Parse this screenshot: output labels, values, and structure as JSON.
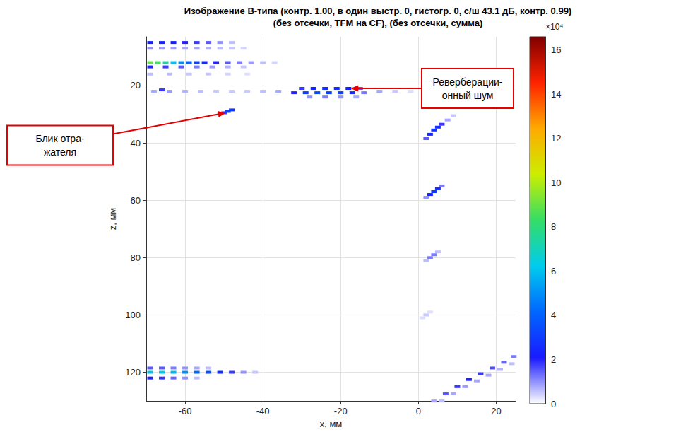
{
  "chart_data": {
    "type": "scatter",
    "title": "Изображение В-типа (контр. 1.00, в один выстр. 0, гистогр. 0, с/ш 43.1 дБ, контр. 0.99)",
    "subtitle": "(без отсечки, TFM на CF), (без отсечки, сумма)",
    "x_label": "x, мм",
    "y_label": "z, мм",
    "xlim": [
      -70,
      25
    ],
    "xticks": [
      -60,
      -40,
      -20,
      0,
      20
    ],
    "ylim": [
      130,
      3
    ],
    "yticks": [
      20,
      40,
      60,
      80,
      100,
      120
    ],
    "grid": true,
    "colorbar": {
      "range": [
        0,
        166000
      ],
      "ticks": [
        0,
        {
          "value": 20000,
          "label": "2"
        },
        {
          "value": 40000,
          "label": "4"
        },
        {
          "value": 60000,
          "label": "6"
        },
        {
          "value": 80000,
          "label": "8"
        },
        {
          "value": 100000,
          "label": "10"
        },
        {
          "value": 120000,
          "label": "12"
        },
        {
          "value": 140000,
          "label": "14"
        },
        {
          "value": 160000,
          "label": "16"
        }
      ],
      "label": "×10⁴"
    },
    "annotations": [
      {
        "lines": [
          "Блик отра-",
          "жателя"
        ],
        "x": -49,
        "z": 29
      },
      {
        "lines": [
          "Реверберации-",
          "онный шум"
        ],
        "x": -20,
        "z": 21
      }
    ],
    "points": [
      [
        -69,
        5,
        22000
      ],
      [
        -66,
        5,
        24000
      ],
      [
        -63,
        5,
        22000
      ],
      [
        -60,
        5,
        20000
      ],
      [
        -57,
        5,
        18000
      ],
      [
        -54,
        5,
        15000
      ],
      [
        -51,
        5,
        10000
      ],
      [
        -48,
        5,
        6000
      ],
      [
        -69,
        7,
        10000
      ],
      [
        -66,
        7,
        9000
      ],
      [
        -63,
        7,
        9000
      ],
      [
        -60,
        7,
        8000
      ],
      [
        -57,
        7,
        8000
      ],
      [
        -54,
        7,
        7000
      ],
      [
        -51,
        7,
        6000
      ],
      [
        -48,
        7,
        5000
      ],
      [
        -45,
        7,
        4000
      ],
      [
        -69,
        16,
        6000
      ],
      [
        -64,
        16,
        6000
      ],
      [
        -59,
        16,
        5000
      ],
      [
        -54,
        16,
        5000
      ],
      [
        -49,
        16,
        4000
      ],
      [
        -44,
        16,
        3000
      ],
      [
        -69,
        13.5,
        20000
      ],
      [
        -65,
        13.5,
        18000
      ],
      [
        -61,
        13.5,
        15000
      ],
      [
        -57,
        13.5,
        12000
      ],
      [
        -53,
        13.5,
        9000
      ],
      [
        -49,
        13.5,
        7000
      ],
      [
        -45,
        13.5,
        5000
      ],
      [
        -37,
        12,
        4000
      ],
      [
        -40,
        12,
        6000
      ],
      [
        -43,
        12,
        9000
      ],
      [
        -46,
        12,
        12000
      ],
      [
        -49,
        12,
        15000
      ],
      [
        -52,
        12,
        20000
      ],
      [
        -55,
        12,
        25000
      ],
      [
        -57,
        12,
        32000
      ],
      [
        -59,
        12,
        40000
      ],
      [
        -61,
        12,
        50000
      ],
      [
        -63,
        12,
        60000
      ],
      [
        -65,
        12,
        75000
      ],
      [
        -67,
        12,
        85000
      ],
      [
        -69,
        12,
        90000
      ],
      [
        -68,
        22,
        8000
      ],
      [
        -64,
        22,
        9000
      ],
      [
        -60,
        22,
        7000
      ],
      [
        -56,
        22,
        6000
      ],
      [
        -52,
        22,
        5000
      ],
      [
        -48,
        22,
        5000
      ],
      [
        -44,
        22,
        5000
      ],
      [
        -40,
        22,
        6000
      ],
      [
        -36,
        22,
        8000
      ],
      [
        -10,
        22,
        8000
      ],
      [
        -6,
        22,
        5000
      ],
      [
        -2,
        22,
        3000
      ],
      [
        -66,
        21.5,
        18000
      ],
      [
        -28,
        24,
        10000
      ],
      [
        -24,
        24,
        12000
      ],
      [
        -20,
        24,
        10000
      ],
      [
        -16,
        24,
        8000
      ],
      [
        -30,
        21,
        18000
      ],
      [
        -27,
        21,
        24000
      ],
      [
        -24,
        21,
        26000
      ],
      [
        -21,
        21,
        25000
      ],
      [
        -18,
        21,
        22000
      ],
      [
        -15,
        21,
        15000
      ],
      [
        -32,
        22.5,
        20000
      ],
      [
        -29,
        22.5,
        30000
      ],
      [
        -26,
        22.5,
        34000
      ],
      [
        -23,
        22.5,
        32000
      ],
      [
        -20,
        22.5,
        30000
      ],
      [
        -17,
        22.5,
        24000
      ],
      [
        -14,
        22.5,
        12000
      ],
      [
        -50,
        29.5,
        18000
      ],
      [
        -49,
        29,
        32000
      ],
      [
        -48,
        28.5,
        28000
      ],
      [
        9,
        30.5,
        5000
      ],
      [
        7.5,
        32,
        8000
      ],
      [
        2,
        38.5,
        15000
      ],
      [
        6,
        33.5,
        18000
      ],
      [
        3,
        37,
        24000
      ],
      [
        5,
        34.5,
        26000
      ],
      [
        4,
        35.5,
        28000
      ],
      [
        2,
        59,
        10000
      ],
      [
        6,
        55,
        12000
      ],
      [
        3,
        58,
        24000
      ],
      [
        5,
        56,
        26000
      ],
      [
        4,
        57,
        30000
      ],
      [
        2,
        81,
        6000
      ],
      [
        5,
        78,
        6000
      ],
      [
        3,
        80,
        12000
      ],
      [
        4,
        79,
        12000
      ],
      [
        1,
        101,
        3000
      ],
      [
        3,
        99,
        3000
      ],
      [
        2,
        100,
        5000
      ],
      [
        -69,
        118.5,
        15000
      ],
      [
        -66,
        118.5,
        15000
      ],
      [
        -63,
        118.5,
        12000
      ],
      [
        -60,
        118.5,
        10000
      ],
      [
        -57,
        118.5,
        8000
      ],
      [
        -54,
        118.5,
        6000
      ],
      [
        -69,
        122,
        20000
      ],
      [
        -66,
        122,
        18000
      ],
      [
        -63,
        122,
        14000
      ],
      [
        -60,
        122,
        10000
      ],
      [
        -57,
        122,
        6000
      ],
      [
        -42,
        120,
        5000
      ],
      [
        -45,
        120,
        10000
      ],
      [
        -48,
        120,
        18000
      ],
      [
        -51,
        120,
        26000
      ],
      [
        -54,
        120,
        34000
      ],
      [
        -57,
        120,
        42000
      ],
      [
        -60,
        120,
        50000
      ],
      [
        -63,
        120,
        58000
      ],
      [
        -69,
        120,
        60000
      ],
      [
        -66,
        120,
        62000
      ],
      [
        6,
        130,
        6000
      ],
      [
        9,
        127.5,
        8000
      ],
      [
        12,
        125,
        9000
      ],
      [
        15,
        123,
        8000
      ],
      [
        18,
        121,
        8000
      ],
      [
        21,
        119,
        7000
      ],
      [
        24,
        117,
        6000
      ],
      [
        4,
        130,
        8000
      ],
      [
        7,
        127.5,
        15000
      ],
      [
        10,
        125,
        18000
      ],
      [
        13,
        122.5,
        20000
      ],
      [
        16,
        120.5,
        18000
      ],
      [
        19,
        118.5,
        16000
      ],
      [
        22,
        116.5,
        14000
      ],
      [
        24.5,
        114.5,
        12000
      ]
    ]
  }
}
